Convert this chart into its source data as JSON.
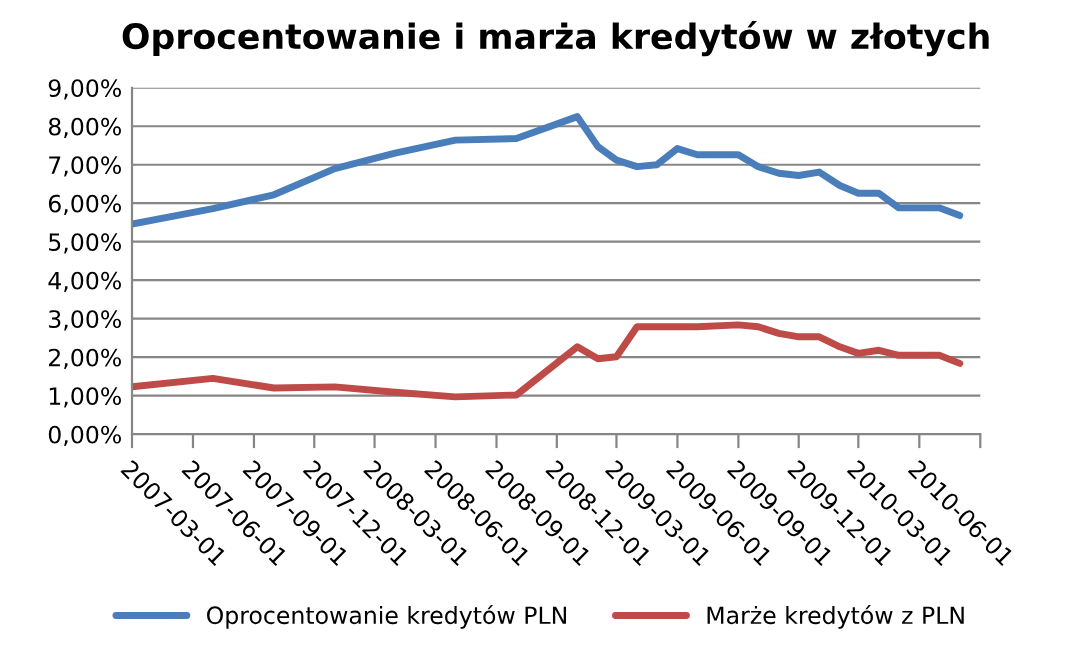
{
  "chart_data": {
    "type": "line",
    "title": "Oprocentowanie i marża kredytów w złotych",
    "x": [
      "2007-03",
      "2007-07",
      "2007-10",
      "2008-01",
      "2008-04",
      "2008-07",
      "2008-10",
      "2009-01",
      "2009-02",
      "2009-03",
      "2009-04",
      "2009-05",
      "2009-06",
      "2009-07",
      "2009-09",
      "2009-10",
      "2009-11",
      "2009-12",
      "2010-01",
      "2010-02",
      "2010-03",
      "2010-04",
      "2010-05",
      "2010-07",
      "2010-08"
    ],
    "series": [
      {
        "name": "Oprocentowanie kredytów PLN",
        "color": "#4a7ebb",
        "values": [
          5.46,
          5.86,
          6.22,
          6.9,
          7.3,
          7.64,
          7.68,
          8.25,
          7.47,
          7.12,
          6.95,
          7.0,
          7.42,
          7.26,
          7.26,
          6.95,
          6.78,
          6.72,
          6.81,
          6.46,
          6.26,
          6.26,
          5.88,
          5.88,
          5.68
        ]
      },
      {
        "name": "Marże kredytów z PLN",
        "color": "#be4b48",
        "values": [
          1.23,
          1.45,
          1.2,
          1.23,
          1.09,
          0.97,
          1.02,
          2.27,
          1.96,
          2.01,
          2.79,
          2.79,
          2.79,
          2.79,
          2.84,
          2.79,
          2.62,
          2.53,
          2.53,
          2.27,
          2.1,
          2.18,
          2.05,
          2.05,
          1.84
        ]
      }
    ],
    "xlim": [
      "2007-03-01",
      "2010-09-01"
    ],
    "xticks": [
      "2007-03-01",
      "2007-06-01",
      "2007-09-01",
      "2007-12-01",
      "2008-03-01",
      "2008-06-01",
      "2008-09-01",
      "2008-12-01",
      "2009-03-01",
      "2009-06-01",
      "2009-09-01",
      "2009-12-01",
      "2010-03-01",
      "2010-06-01",
      {
        "value": "2010-09-01",
        "label": null
      }
    ],
    "ylim": [
      0,
      9
    ],
    "yticks": [
      {
        "value": 0,
        "label": "0,00%"
      },
      {
        "value": 1,
        "label": "1,00%"
      },
      {
        "value": 2,
        "label": "2,00%"
      },
      {
        "value": 3,
        "label": "3,00%"
      },
      {
        "value": 4,
        "label": "4,00%"
      },
      {
        "value": 5,
        "label": "5,00%"
      },
      {
        "value": 6,
        "label": "6,00%"
      },
      {
        "value": 7,
        "label": "7,00%"
      },
      {
        "value": 8,
        "label": "8,00%"
      },
      {
        "value": 9,
        "label": "9,00%"
      }
    ],
    "grid": "y",
    "legend": "bottom",
    "marker": "none",
    "line_style": "solid"
  }
}
